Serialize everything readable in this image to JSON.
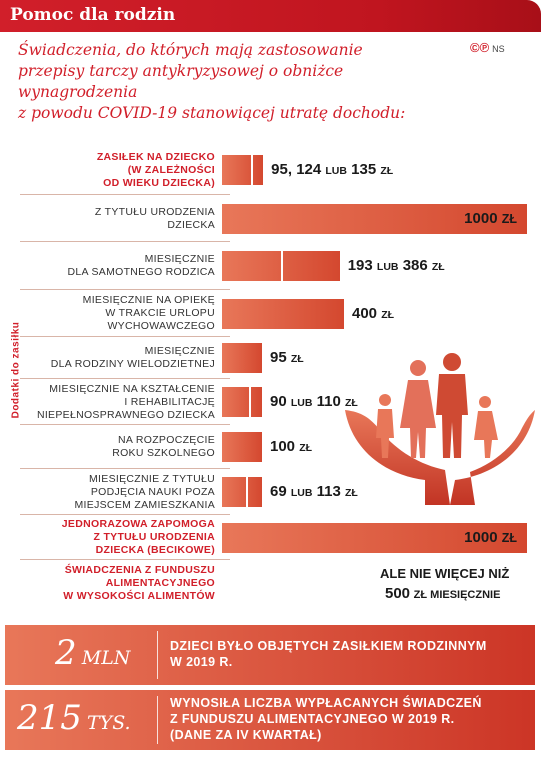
{
  "header": {
    "title": "Pomoc dla rodzin"
  },
  "subtitle": {
    "line1": "Świadczenia, do których mają zastosowanie",
    "line2": "przepisy tarczy antykryzysowej o obniżce wynagrodzenia",
    "line3": "z powodu COVID-19 stanowiącej utratę dochodu:"
  },
  "copyright": {
    "symbols": "©℗",
    "author": "NS"
  },
  "side_label": "Dodatki do zasiłku",
  "chart_data": {
    "type": "bar",
    "unit": "zł",
    "categories": [
      "Zasiłek na dziecko (w zależności od wieku dziecka)",
      "z tytułu urodzenia dziecka",
      "miesięcznie dla samotnego rodzica",
      "miesięcznie na opiekę w trakcie urlopu wychowawczego",
      "miesięcznie dla rodziny wielodzietnej",
      "miesięcznie na kształcenie i rehabilitację niepełnosprawnego dziecka",
      "na rozpoczęcie roku szkolnego",
      "miesięcznie z tytułu podjęcia nauki poza miejscem zamieszkania",
      "Jednorazowa zapomoga z tytułu urodzenia dziecka (becikowe)",
      "Świadczenia z Funduszu Alimentacyjnego w wysokości alimentów"
    ],
    "series": [
      {
        "values": [
          95,
          1000,
          193,
          400,
          95,
          90,
          100,
          69,
          1000,
          null
        ]
      },
      {
        "values": [
          135,
          null,
          386,
          null,
          null,
          110,
          null,
          113,
          null,
          500
        ]
      }
    ],
    "value_labels": [
      {
        "a": "95, 124",
        "sep": "lub",
        "b": "135",
        "unit": "zł"
      },
      {
        "a": "1000",
        "sep": "",
        "b": "",
        "unit": "zł"
      },
      {
        "a": "193",
        "sep": "lub",
        "b": "386",
        "unit": "zł"
      },
      {
        "a": "400",
        "sep": "",
        "b": "",
        "unit": "zł"
      },
      {
        "a": "95",
        "sep": "",
        "b": "",
        "unit": "zł"
      },
      {
        "a": "90",
        "sep": "lub",
        "b": "110",
        "unit": "zł"
      },
      {
        "a": "100",
        "sep": "",
        "b": "",
        "unit": "zł"
      },
      {
        "a": "69",
        "sep": "lub",
        "b": "113",
        "unit": "zł"
      },
      {
        "a": "1000",
        "sep": "",
        "b": "",
        "unit": "zł"
      }
    ],
    "last_note": {
      "line1": "ale nie więcej niż",
      "amount": "500",
      "unit": "zł miesięcznie"
    },
    "xlim": [
      0,
      1000
    ]
  },
  "categories_display": [
    {
      "lines": [
        "Zasiłek na dziecko",
        "(w zależności",
        "od wieku dziecka)"
      ],
      "main": true
    },
    {
      "lines": [
        "z tytułu urodzenia",
        "dziecka"
      ],
      "main": false
    },
    {
      "lines": [
        "miesięcznie",
        "dla samotnego rodzica"
      ],
      "main": false
    },
    {
      "lines": [
        "miesięcznie na opiekę",
        "w trakcie urlopu",
        "wychowawczego"
      ],
      "main": false
    },
    {
      "lines": [
        "miesięcznie",
        "dla rodziny wielodzietnej"
      ],
      "main": false
    },
    {
      "lines": [
        "miesięcznie na kształcenie",
        "i rehabilitację",
        "niepełnosprawnego dziecka"
      ],
      "main": false
    },
    {
      "lines": [
        "na rozpoczęcie",
        "roku szkolnego"
      ],
      "main": false
    },
    {
      "lines": [
        "miesięcznie z tytułu",
        "podjęcia nauki poza",
        "miejscem zamieszkania"
      ],
      "main": false
    },
    {
      "lines": [
        "Jednorazowa zapomoga",
        "z tytułu urodzenia",
        "dziecka (becikowe)"
      ],
      "main": true
    },
    {
      "lines": [
        "Świadczenia z Funduszu",
        "Alimentacyjnego",
        "w wysokości alimentów"
      ],
      "main": true
    }
  ],
  "stats": [
    {
      "number": "2",
      "unit": "mln",
      "line1": "dzieci było objętych zasiłkiem rodzinnym",
      "line2": "w 2019 r.",
      "line3": ""
    },
    {
      "number": "215",
      "unit": "tys.",
      "line1": "wynosiła liczba wypłacanych świadczeń",
      "line2": "z Funduszu Alimentacyjnego w 2019 r.",
      "line3": "(dane za IV kwartał)"
    }
  ],
  "colors": {
    "accent": "#d11f2a",
    "bar_light": "#e87759",
    "bar_dark": "#d4482f"
  }
}
